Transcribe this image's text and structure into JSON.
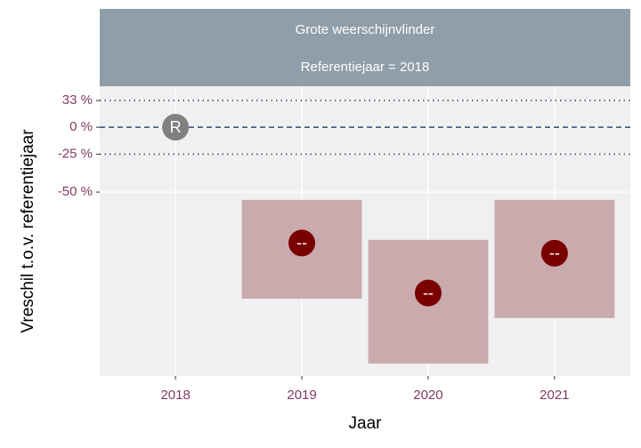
{
  "chart_data": {
    "type": "effect",
    "title": "Grote weerschijnvlinder",
    "subtitle": "Referentiejaar = 2018",
    "xlabel": "Jaar",
    "ylabel": "Vreschil t.o.v. referentiejaar",
    "x": [
      2018,
      2019,
      2020,
      2021
    ],
    "values": [
      0,
      -71,
      -83,
      -74
    ],
    "lower": [
      null,
      -84,
      -92,
      -87
    ],
    "upper": [
      null,
      -54,
      -70,
      -54
    ],
    "point_labels": [
      "R",
      "--",
      "--",
      "--"
    ],
    "point_colors": [
      "#808080",
      "#7a0000",
      "#7a0000",
      "#7a0000"
    ],
    "interval_color": "#c9aaad",
    "y_scale": "log-ratio",
    "xlim": [
      2017.4,
      2021.6
    ],
    "xticks": [
      2018,
      2019,
      2020,
      2021
    ],
    "ylim": [
      -93,
      55
    ],
    "yticks": [
      {
        "value": 33,
        "label": "33 %"
      },
      {
        "value": 0,
        "label": "0 %"
      },
      {
        "value": -25,
        "label": "-25 %"
      },
      {
        "value": -50,
        "label": "-50 %"
      }
    ],
    "reference_lines": [
      {
        "value": 33,
        "style": "dotted"
      },
      {
        "value": 0,
        "style": "dashed"
      },
      {
        "value": -25,
        "style": "dotted"
      }
    ],
    "grid": true
  }
}
